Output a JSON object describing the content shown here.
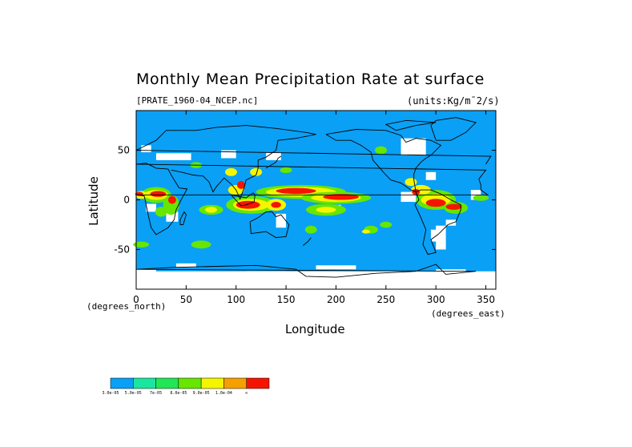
{
  "chart_data": {
    "type": "heatmap",
    "title": "Monthly Mean Precipitation Rate at surface",
    "source_file": "[PRATE_1960-04_NCEP.nc]",
    "units": "(units:Kg/m¯2/s)",
    "xlabel": "Longitude",
    "ylabel": "Latitude",
    "x_unit_label": "(degrees_north)",
    "x_unit_label_east": "(degrees_east)",
    "xlim": [
      0,
      360
    ],
    "ylim": [
      -90,
      90
    ],
    "x_ticks": [
      0,
      50,
      100,
      150,
      200,
      250,
      300,
      350
    ],
    "y_ticks": [
      50,
      0,
      -50
    ],
    "colorbar": {
      "colors": [
        "#0aa0f5",
        "#1ae6a0",
        "#22e655",
        "#66e600",
        "#f5f500",
        "#f5a000",
        "#f51400"
      ],
      "labels": [
        "3.0e-05",
        "5.0e-05",
        "7e-05",
        "8.0e-05",
        "9.0e-05",
        "1.0e-04",
        "∞"
      ]
    },
    "background_color": "#0aa0f5",
    "missing_color": "#ffffff"
  }
}
